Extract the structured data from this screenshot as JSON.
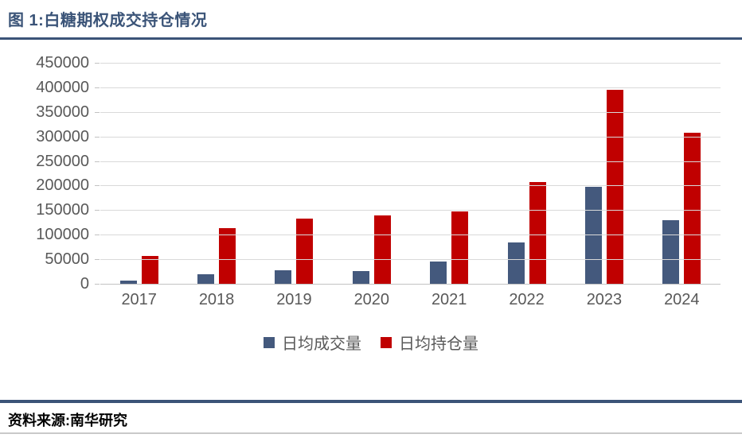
{
  "header": {
    "title": "图 1:白糖期权成交持仓情况"
  },
  "footer": {
    "source": "资料来源:南华研究"
  },
  "chart_data": {
    "type": "bar",
    "title": "白糖期权成交持仓情况",
    "categories": [
      "2017",
      "2018",
      "2019",
      "2020",
      "2021",
      "2022",
      "2023",
      "2024"
    ],
    "series": [
      {
        "name": "日均成交量",
        "color": "#44597D",
        "values": [
          7000,
          19000,
          27000,
          26000,
          45000,
          84000,
          198000,
          130000
        ]
      },
      {
        "name": "日均持仓量",
        "color": "#C00000",
        "values": [
          56000,
          114000,
          132000,
          139000,
          148000,
          208000,
          395000,
          308000
        ]
      }
    ],
    "ylim": [
      0,
      450000
    ],
    "ytick_step": 50000,
    "grid": "horizontal",
    "legend_position": "bottom"
  },
  "colors": {
    "accent": "#3B5478",
    "gridline": "#D9D9D9",
    "axis": "#C2C2C2",
    "tick_label": "#595959"
  }
}
